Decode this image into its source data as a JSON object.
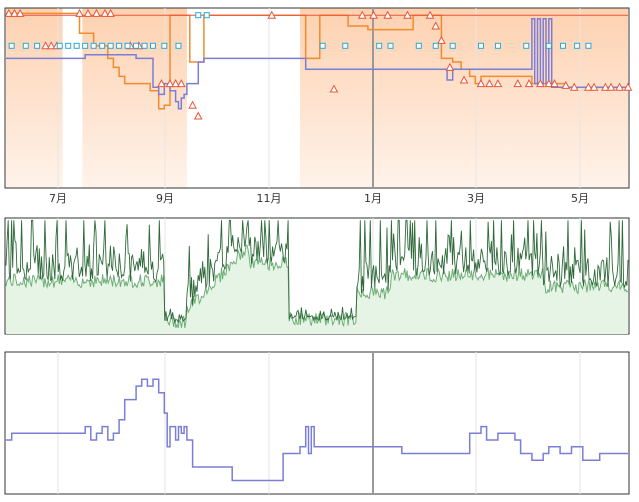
{
  "colors": {
    "frame": "#333333",
    "grid": "#e6e6e6",
    "cursor": "#999999",
    "shade_top": "#fdd1b0",
    "shade_bottom": "#fff3ea",
    "orange": "#f28a2e",
    "triangle": "#e8553a",
    "square": "#29a8d8",
    "purple": "#7b7ed6",
    "dark_green": "#2f6a3a",
    "light_green": "#6fae78",
    "green_fill": "#e6f4e6"
  },
  "chart_data": [
    {
      "type": "line",
      "id": "price-history",
      "x_labels": [
        "7月",
        "9月",
        "11月",
        "1月",
        "3月",
        "5月"
      ],
      "ylim": [
        0,
        100
      ],
      "cursor_at": "1月",
      "shaded_availability": [
        {
          "from": 0.0,
          "to": 1.0
        },
        {
          "from": 1.35,
          "to": 3.2
        },
        {
          "from": 5.2,
          "to": 11.0
        }
      ],
      "series": [
        {
          "key": "amazon",
          "style": "orange-step-triangle",
          "points": [
            [
              0.0,
              97
            ],
            [
              0.9,
              97
            ],
            [
              1.2,
              97
            ],
            [
              1.3,
              86
            ],
            [
              1.4,
              86
            ],
            [
              1.55,
              79
            ],
            [
              1.65,
              79
            ],
            [
              1.8,
              72
            ],
            [
              1.9,
              67
            ],
            [
              2.0,
              62
            ],
            [
              2.1,
              58
            ],
            [
              2.2,
              58
            ],
            [
              2.4,
              58
            ],
            [
              2.55,
              54
            ],
            [
              2.7,
              44
            ],
            [
              2.8,
              46
            ],
            [
              2.9,
              96
            ],
            [
              3.1,
              96
            ],
            [
              3.2,
              96
            ],
            [
              3.25,
              70
            ],
            [
              3.45,
              70
            ],
            [
              3.5,
              96
            ],
            [
              3.8,
              96
            ],
            [
              5.2,
              96
            ],
            [
              5.3,
              72
            ],
            [
              5.5,
              72
            ],
            [
              5.55,
              96
            ],
            [
              6.0,
              96
            ],
            [
              6.05,
              90
            ],
            [
              6.3,
              90
            ],
            [
              6.4,
              88
            ],
            [
              7.0,
              88
            ],
            [
              7.2,
              96
            ],
            [
              7.6,
              96
            ],
            [
              7.7,
              72
            ],
            [
              7.9,
              70
            ],
            [
              8.05,
              66
            ],
            [
              8.2,
              62
            ],
            [
              8.3,
              58
            ],
            [
              8.4,
              62
            ],
            [
              8.6,
              62
            ],
            [
              9.0,
              62
            ],
            [
              9.3,
              58
            ],
            [
              9.6,
              58
            ],
            [
              9.9,
              56
            ],
            [
              10.2,
              56
            ],
            [
              10.5,
              56
            ],
            [
              10.8,
              56
            ],
            [
              11.0,
              56
            ]
          ],
          "markers": [
            [
              0.05,
              97
            ],
            [
              0.15,
              97
            ],
            [
              0.25,
              97
            ],
            [
              0.7,
              79
            ],
            [
              0.8,
              79
            ],
            [
              0.9,
              79
            ],
            [
              1.3,
              97
            ],
            [
              1.45,
              97
            ],
            [
              1.6,
              97
            ],
            [
              1.75,
              97
            ],
            [
              1.85,
              97
            ],
            [
              2.2,
              79
            ],
            [
              2.35,
              79
            ],
            [
              2.75,
              58
            ],
            [
              2.9,
              58
            ],
            [
              3.0,
              58
            ],
            [
              3.1,
              58
            ],
            [
              3.3,
              46
            ],
            [
              3.4,
              40
            ],
            [
              4.7,
              96
            ],
            [
              5.8,
              55
            ],
            [
              6.3,
              96
            ],
            [
              6.5,
              96
            ],
            [
              6.75,
              96
            ],
            [
              7.1,
              96
            ],
            [
              7.5,
              96
            ],
            [
              7.6,
              90
            ],
            [
              7.7,
              82
            ],
            [
              7.85,
              67
            ],
            [
              8.1,
              60
            ],
            [
              8.4,
              58
            ],
            [
              8.55,
              58
            ],
            [
              8.7,
              58
            ],
            [
              9.05,
              58
            ],
            [
              9.25,
              58
            ],
            [
              9.45,
              58
            ],
            [
              9.6,
              58
            ],
            [
              9.7,
              58
            ],
            [
              9.9,
              57
            ],
            [
              10.05,
              56
            ],
            [
              10.3,
              56
            ],
            [
              10.4,
              56
            ],
            [
              10.6,
              56
            ],
            [
              10.7,
              56
            ],
            [
              10.85,
              56
            ],
            [
              11.0,
              56
            ]
          ]
        },
        {
          "key": "third_party_new",
          "style": "blue-square",
          "markers": [
            [
              0.1,
              79
            ],
            [
              0.35,
              79
            ],
            [
              0.55,
              79
            ],
            [
              0.95,
              79
            ],
            [
              1.1,
              79
            ],
            [
              1.25,
              79
            ],
            [
              1.4,
              79
            ],
            [
              1.55,
              79
            ],
            [
              1.7,
              79
            ],
            [
              1.85,
              79
            ],
            [
              2.0,
              79
            ],
            [
              2.15,
              79
            ],
            [
              2.3,
              79
            ],
            [
              2.45,
              79
            ],
            [
              2.6,
              79
            ],
            [
              2.8,
              79
            ],
            [
              3.05,
              79
            ],
            [
              3.4,
              96
            ],
            [
              3.55,
              96
            ],
            [
              5.6,
              79
            ],
            [
              6.0,
              79
            ],
            [
              6.6,
              79
            ],
            [
              6.8,
              79
            ],
            [
              7.3,
              79
            ],
            [
              7.6,
              79
            ],
            [
              7.9,
              79
            ],
            [
              8.4,
              79
            ],
            [
              8.7,
              79
            ],
            [
              9.2,
              79
            ],
            [
              9.6,
              79
            ],
            [
              9.85,
              79
            ],
            [
              10.1,
              79
            ],
            [
              10.3,
              79
            ]
          ]
        },
        {
          "key": "third_party_used",
          "style": "purple-step",
          "points": [
            [
              0.0,
              72
            ],
            [
              1.2,
              72
            ],
            [
              1.3,
              72
            ],
            [
              1.4,
              74
            ],
            [
              2.2,
              74
            ],
            [
              2.3,
              72
            ],
            [
              2.5,
              72
            ],
            [
              2.6,
              56
            ],
            [
              2.7,
              52
            ],
            [
              2.8,
              58
            ],
            [
              2.9,
              54
            ],
            [
              3.0,
              48
            ],
            [
              3.05,
              44
            ],
            [
              3.1,
              50
            ],
            [
              3.15,
              52
            ],
            [
              3.2,
              58
            ],
            [
              3.3,
              58
            ],
            [
              3.4,
              70
            ],
            [
              3.5,
              72
            ],
            [
              4.2,
              72
            ],
            [
              4.4,
              72
            ],
            [
              4.6,
              72
            ],
            [
              4.8,
              72
            ],
            [
              5.0,
              72
            ],
            [
              5.1,
              72
            ],
            [
              5.2,
              72
            ],
            [
              5.3,
              66
            ],
            [
              5.5,
              66
            ],
            [
              6.0,
              66
            ],
            [
              6.5,
              66
            ],
            [
              7.0,
              66
            ],
            [
              7.5,
              66
            ],
            [
              7.8,
              60
            ],
            [
              7.9,
              66
            ],
            [
              8.2,
              66
            ],
            [
              8.6,
              66
            ],
            [
              9.0,
              66
            ],
            [
              9.2,
              66
            ],
            [
              9.3,
              94
            ],
            [
              9.35,
              58
            ],
            [
              9.4,
              94
            ],
            [
              9.45,
              58
            ],
            [
              9.5,
              94
            ],
            [
              9.55,
              58
            ],
            [
              9.6,
              94
            ],
            [
              9.65,
              56
            ],
            [
              10.0,
              56
            ],
            [
              10.5,
              56
            ],
            [
              11.0,
              56
            ]
          ]
        }
      ]
    },
    {
      "type": "line",
      "id": "sales-rank",
      "x_labels": [
        "7月",
        "9月",
        "11月",
        "1月",
        "3月",
        "5月"
      ],
      "series": [
        {
          "key": "rank_recent",
          "style": "dark-green-noise"
        },
        {
          "key": "rank_avg",
          "style": "light-green-area"
        }
      ]
    },
    {
      "type": "line",
      "id": "offer-count",
      "x_labels": [
        "7月",
        "9月",
        "11月",
        "1月",
        "3月",
        "5月"
      ],
      "ylim": [
        0,
        20
      ],
      "cursor_at": "1月",
      "series": [
        {
          "key": "offers",
          "style": "purple-step",
          "points": [
            [
              0.0,
              8
            ],
            [
              0.1,
              9
            ],
            [
              1.3,
              9
            ],
            [
              1.4,
              10
            ],
            [
              1.5,
              8
            ],
            [
              1.6,
              9
            ],
            [
              1.7,
              10
            ],
            [
              1.8,
              8
            ],
            [
              1.9,
              9
            ],
            [
              2.0,
              11
            ],
            [
              2.1,
              14
            ],
            [
              2.3,
              16
            ],
            [
              2.4,
              17
            ],
            [
              2.5,
              16
            ],
            [
              2.6,
              17
            ],
            [
              2.7,
              15
            ],
            [
              2.8,
              12
            ],
            [
              2.85,
              7
            ],
            [
              2.9,
              10
            ],
            [
              3.0,
              8
            ],
            [
              3.05,
              10
            ],
            [
              3.1,
              9
            ],
            [
              3.15,
              10
            ],
            [
              3.2,
              8
            ],
            [
              3.3,
              4
            ],
            [
              3.5,
              4
            ],
            [
              3.7,
              4
            ],
            [
              3.8,
              4
            ],
            [
              4.0,
              2
            ],
            [
              4.3,
              2
            ],
            [
              4.6,
              2
            ],
            [
              4.8,
              2
            ],
            [
              4.9,
              6
            ],
            [
              5.0,
              6
            ],
            [
              5.2,
              7
            ],
            [
              5.3,
              10
            ],
            [
              5.35,
              6
            ],
            [
              5.4,
              10
            ],
            [
              5.45,
              7
            ],
            [
              5.6,
              7
            ],
            [
              6.0,
              7
            ],
            [
              6.4,
              7
            ],
            [
              7.0,
              6
            ],
            [
              7.5,
              6
            ],
            [
              8.0,
              6
            ],
            [
              8.2,
              9
            ],
            [
              8.4,
              10
            ],
            [
              8.5,
              8
            ],
            [
              8.7,
              9
            ],
            [
              9.0,
              8
            ],
            [
              9.1,
              6
            ],
            [
              9.3,
              5
            ],
            [
              9.5,
              6
            ],
            [
              9.6,
              7
            ],
            [
              9.8,
              6
            ],
            [
              10.0,
              7
            ],
            [
              10.2,
              5
            ],
            [
              10.5,
              6
            ],
            [
              10.8,
              6
            ],
            [
              11.0,
              6
            ]
          ]
        }
      ]
    }
  ]
}
